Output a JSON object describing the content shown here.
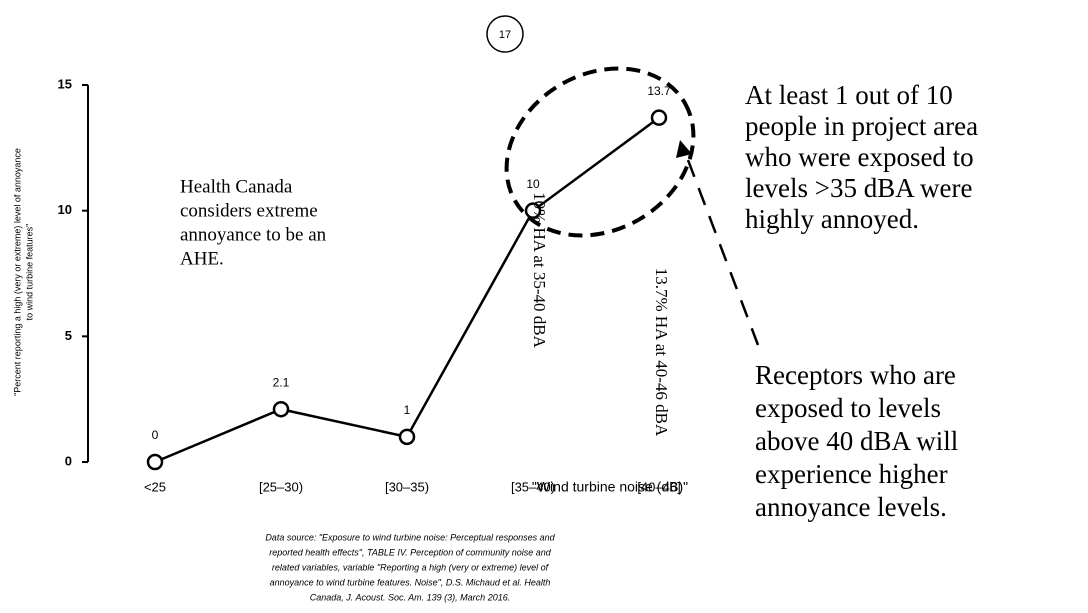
{
  "chart_data": {
    "type": "line",
    "page_number": "17",
    "categories": [
      "<25",
      "[25–30)",
      "[30–35)",
      "[35–40)",
      "[40–46]"
    ],
    "values": [
      0,
      2.1,
      1,
      10,
      13.7
    ],
    "color": "#000000",
    "ylim": [
      0,
      15
    ],
    "yticks": [
      0,
      5,
      10,
      15
    ],
    "xlabel": "\"Wind turbine noise (dB)\"",
    "ylabel": [
      "\"Percent reporting a high (very or extreme) level of annoyance",
      "to wind turbine features\""
    ],
    "annotations": {
      "health_canada": [
        "Health Canada",
        "considers extreme",
        "annoyance to be an",
        "AHE."
      ],
      "bar_labels": [
        "10% HA at 35-40 dBA",
        "13.7% HA at 40-46 dBA"
      ],
      "at_least": [
        "At least 1 out of 10",
        "people in project area",
        "who were exposed to",
        "levels >35 dBA were",
        "highly annoyed."
      ],
      "receptors": [
        "Receptors who are",
        "exposed to levels",
        "above 40 dBA will",
        "experience higher",
        "annoyance levels."
      ]
    },
    "source": [
      "Data source:  \"Exposure to wind turbine noise: Perceptual responses and",
      "reported health effects\", TABLE IV. Perception of community noise and",
      "related variables, variable \"Reporting a high (very or extreme) level of",
      "annoyance to wind turbine features. Noise\", D.S. Michaud et al. Health",
      "Canada, J. Acoust. Soc. Am. 139 (3), March 2016."
    ]
  }
}
